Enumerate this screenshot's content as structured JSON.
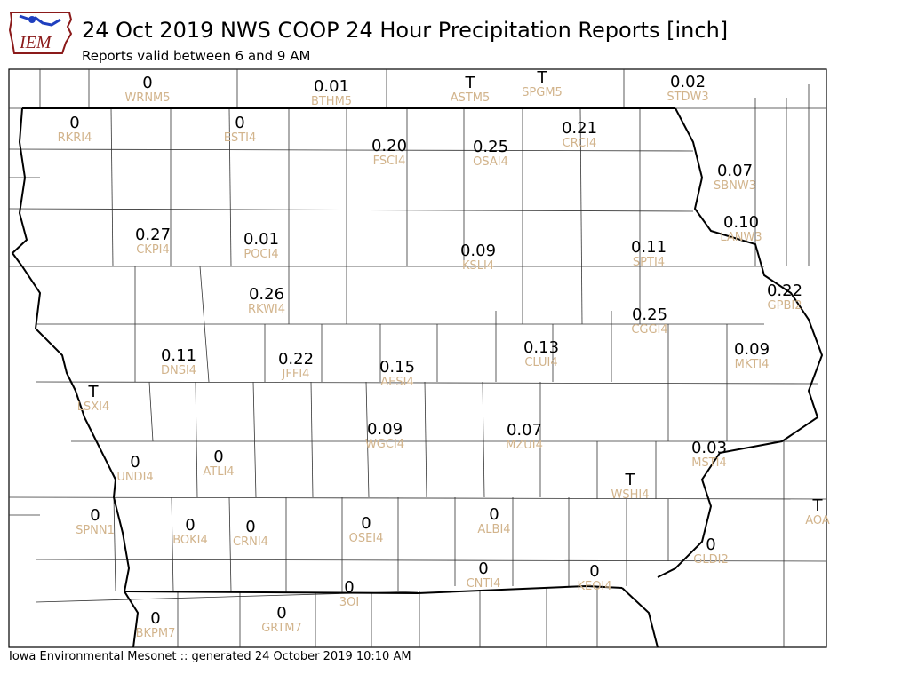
{
  "header": {
    "logo_text": "IEM",
    "title": "24 Oct 2019 NWS COOP 24 Hour Precipitation Reports [inch]",
    "subtitle": "Reports valid between 6 and 9 AM"
  },
  "footer": {
    "text": "Iowa Environmental Mesonet :: generated 24 October 2019 10:10 AM"
  },
  "colors": {
    "station_id": "#d2b48c",
    "value": "#000000",
    "logo_accent": "#8b1a1a",
    "logo_blue": "#1f3fbf"
  },
  "map_data": {
    "units": "inch",
    "stations": [
      {
        "id": "WRNM5",
        "value": "0"
      },
      {
        "id": "BTHM5",
        "value": "0.01"
      },
      {
        "id": "ASTM5",
        "value": "T"
      },
      {
        "id": "SPGM5",
        "value": "T"
      },
      {
        "id": "STDW3",
        "value": "0.02"
      },
      {
        "id": "RKRI4",
        "value": "0"
      },
      {
        "id": "ESTI4",
        "value": "0"
      },
      {
        "id": "FSCI4",
        "value": "0.20"
      },
      {
        "id": "OSAI4",
        "value": "0.25"
      },
      {
        "id": "CRCI4",
        "value": "0.21"
      },
      {
        "id": "SBNW3",
        "value": "0.07"
      },
      {
        "id": "LANW3",
        "value": "0.10"
      },
      {
        "id": "CKPI4",
        "value": "0.27"
      },
      {
        "id": "POCI4",
        "value": "0.01"
      },
      {
        "id": "KSLI4",
        "value": "0.09"
      },
      {
        "id": "SPTI4",
        "value": "0.11"
      },
      {
        "id": "GPBI2",
        "value": "0.22"
      },
      {
        "id": "RKWI4",
        "value": "0.26"
      },
      {
        "id": "CGGI4",
        "value": "0.25"
      },
      {
        "id": "DNSI4",
        "value": "0.11"
      },
      {
        "id": "JFFI4",
        "value": "0.22"
      },
      {
        "id": "AESI4",
        "value": "0.15"
      },
      {
        "id": "CLUI4",
        "value": "0.13"
      },
      {
        "id": "MKTI4",
        "value": "0.09"
      },
      {
        "id": "LSXI4",
        "value": "T"
      },
      {
        "id": "WGCI4",
        "value": "0.09"
      },
      {
        "id": "MZUI4",
        "value": "0.07"
      },
      {
        "id": "MSTI4",
        "value": "0.03"
      },
      {
        "id": "UNDI4",
        "value": "0"
      },
      {
        "id": "ATLI4",
        "value": "0"
      },
      {
        "id": "WSHI4",
        "value": "T"
      },
      {
        "id": "AOA",
        "value": "T"
      },
      {
        "id": "SPNN1",
        "value": "0"
      },
      {
        "id": "BOKI4",
        "value": "0"
      },
      {
        "id": "CRNI4",
        "value": "0"
      },
      {
        "id": "OSEI4",
        "value": "0"
      },
      {
        "id": "ALBI4",
        "value": "0"
      },
      {
        "id": "GLDI2",
        "value": "0"
      },
      {
        "id": "CNTI4",
        "value": "0"
      },
      {
        "id": "KEOI4",
        "value": "0"
      },
      {
        "id": "3OI",
        "value": "0"
      },
      {
        "id": "BKPM7",
        "value": "0"
      },
      {
        "id": "GRTM7",
        "value": "0"
      }
    ]
  }
}
